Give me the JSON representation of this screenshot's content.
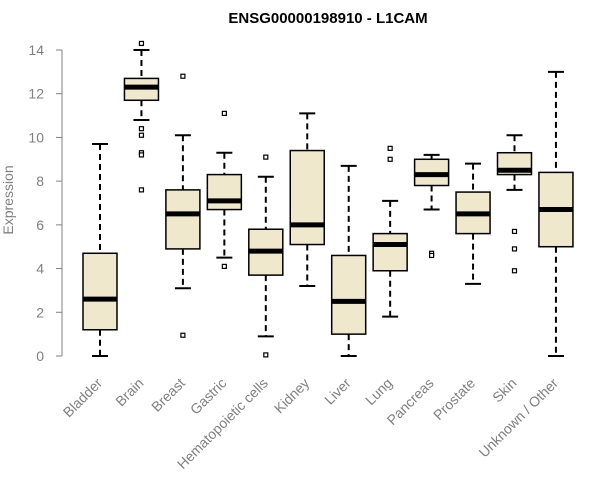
{
  "chart_data": {
    "type": "box",
    "title": "ENSG00000198910 - L1CAM",
    "ylabel": "Expression",
    "xlabel": "",
    "ylim": [
      0,
      14
    ],
    "yticks": [
      0,
      2,
      4,
      6,
      8,
      10,
      12,
      14
    ],
    "grid": false,
    "colors": {
      "box_fill": "#efe8cd",
      "box_stroke": "#000000",
      "median": "#000000",
      "axis": "#808080",
      "title": "#000000"
    },
    "categories": [
      "Bladder",
      "Brain",
      "Breast",
      "Gastric",
      "Hematopoietic cells",
      "Kidney",
      "Liver",
      "Lung",
      "Pancreas",
      "Prostate",
      "Skin",
      "Unknown / Other"
    ],
    "boxes": [
      {
        "category": "Bladder",
        "whisker_low": 0.0,
        "q1": 1.2,
        "median": 2.6,
        "q3": 4.7,
        "whisker_high": 9.7,
        "outliers": []
      },
      {
        "category": "Brain",
        "whisker_low": 10.8,
        "q1": 11.7,
        "median": 12.3,
        "q3": 12.7,
        "whisker_high": 14.0,
        "outliers": [
          14.3,
          10.4,
          10.1,
          9.3,
          9.2,
          7.6
        ]
      },
      {
        "category": "Breast",
        "whisker_low": 3.1,
        "q1": 4.9,
        "median": 6.5,
        "q3": 7.6,
        "whisker_high": 10.1,
        "outliers": [
          12.8,
          0.95
        ]
      },
      {
        "category": "Gastric",
        "whisker_low": 4.5,
        "q1": 6.7,
        "median": 7.1,
        "q3": 8.3,
        "whisker_high": 9.3,
        "outliers": [
          11.1,
          4.1
        ]
      },
      {
        "category": "Hematopoietic cells",
        "whisker_low": 0.9,
        "q1": 3.7,
        "median": 4.8,
        "q3": 5.8,
        "whisker_high": 8.2,
        "outliers": [
          9.1,
          0.05
        ]
      },
      {
        "category": "Kidney",
        "whisker_low": 3.2,
        "q1": 5.1,
        "median": 6.0,
        "q3": 9.4,
        "whisker_high": 11.1,
        "outliers": []
      },
      {
        "category": "Liver",
        "whisker_low": 0.0,
        "q1": 1.0,
        "median": 2.5,
        "q3": 4.6,
        "whisker_high": 8.7,
        "outliers": []
      },
      {
        "category": "Lung",
        "whisker_low": 1.8,
        "q1": 3.9,
        "median": 5.1,
        "q3": 5.6,
        "whisker_high": 7.1,
        "outliers": [
          9.5,
          9.0
        ]
      },
      {
        "category": "Pancreas",
        "whisker_low": 6.7,
        "q1": 7.8,
        "median": 8.3,
        "q3": 9.0,
        "whisker_high": 9.2,
        "outliers": [
          4.7,
          4.6
        ]
      },
      {
        "category": "Prostate",
        "whisker_low": 3.3,
        "q1": 5.6,
        "median": 6.5,
        "q3": 7.5,
        "whisker_high": 8.8,
        "outliers": []
      },
      {
        "category": "Skin",
        "whisker_low": 7.6,
        "q1": 8.3,
        "median": 8.5,
        "q3": 9.3,
        "whisker_high": 10.1,
        "outliers": [
          5.7,
          4.9,
          3.9
        ]
      },
      {
        "category": "Unknown / Other",
        "whisker_low": 0.0,
        "q1": 5.0,
        "median": 6.7,
        "q3": 8.4,
        "whisker_high": 13.0,
        "outliers": []
      }
    ]
  }
}
